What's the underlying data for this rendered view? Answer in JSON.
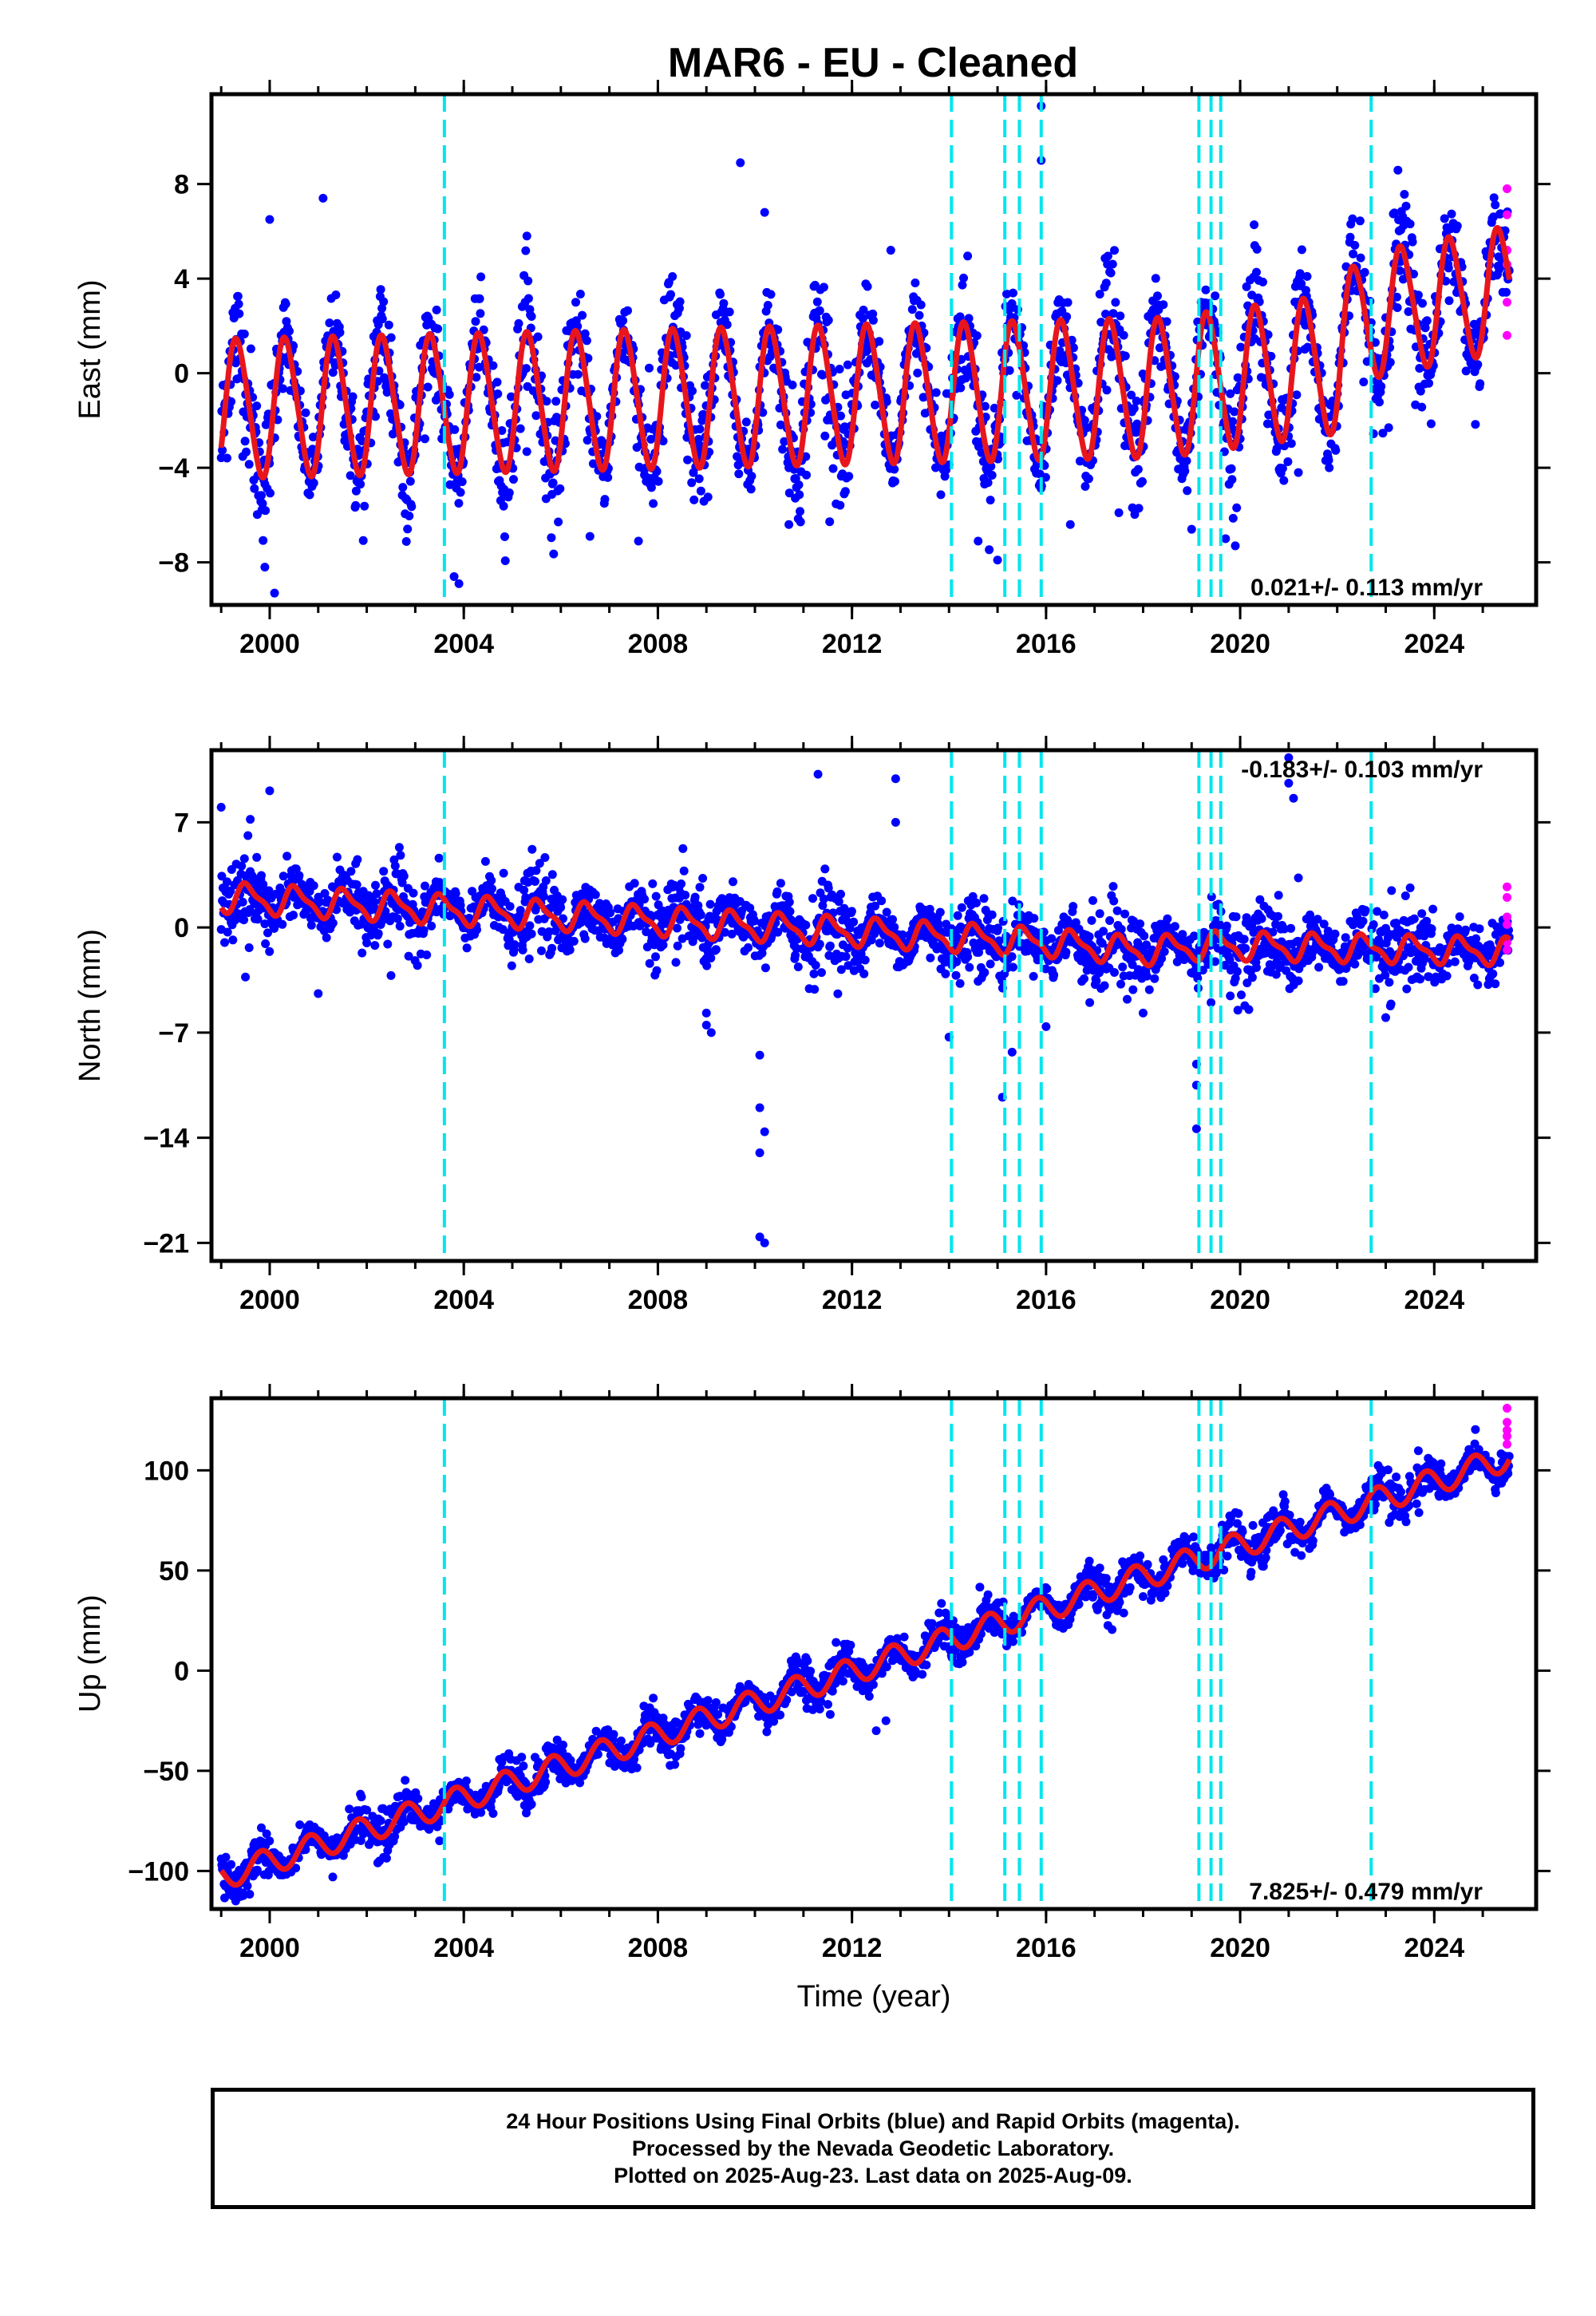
{
  "title": "MAR6  - EU - Cleaned",
  "caption_lines": [
    "24 Hour Positions Using Final Orbits (blue) and Rapid Orbits (magenta).",
    "Processed by the Nevada Geodetic Laboratory.",
    "Plotted on 2025-Aug-23. Last data on 2025-Aug-09."
  ],
  "colors": {
    "final_orbits": "#0000ff",
    "rapid_orbits": "#ff00ff",
    "model_fit": "#e8161c",
    "equipment_change": "#00e5ee"
  },
  "chart_data": [
    {
      "type": "scatter",
      "component": "east",
      "ylabel": "East (mm)",
      "xlabel": "",
      "xlim": [
        1998.8,
        2026.1
      ],
      "ylim": [
        -9.8,
        11.8
      ],
      "yticks": [
        -8,
        -4,
        0,
        4,
        8
      ],
      "xticks": [
        2000,
        2004,
        2008,
        2012,
        2016,
        2020,
        2024
      ],
      "rate_label": "0.021+/- 0.113 mm/yr",
      "rate_position": "bottom-right",
      "model": {
        "intercept": -0.6,
        "trend": [
          [
            1999.0,
            -0.9
          ],
          [
            2018.5,
            0.0
          ],
          [
            2022.0,
            1.0
          ],
          [
            2022.5,
            3.0
          ],
          [
            2025.6,
            4.2
          ]
        ],
        "amplitude": [
          [
            1999.0,
            2.9
          ],
          [
            2019.0,
            2.9
          ],
          [
            2022.0,
            2.9
          ],
          [
            2023.0,
            2.6
          ],
          [
            2025.6,
            2.6
          ]
        ],
        "phase_year": 0.08,
        "semiannual": 0.3
      },
      "scatter_spread": 1.5,
      "outliers": [
        [
          2009.7,
          8.9
        ],
        [
          2010.2,
          6.8
        ],
        [
          2012.8,
          5.2
        ],
        [
          2015.9,
          11.3
        ],
        [
          2015.9,
          9.0
        ],
        [
          2001.1,
          7.4
        ],
        [
          2000.0,
          6.5
        ],
        [
          2000.1,
          -9.3
        ],
        [
          1999.9,
          -8.2
        ],
        [
          2003.8,
          -8.6
        ],
        [
          2003.9,
          -8.9
        ],
        [
          2005.3,
          5.8
        ],
        [
          2006.6,
          -6.9
        ],
        [
          2007.6,
          -7.1
        ],
        [
          2010.7,
          -6.4
        ],
        [
          2014.6,
          -7.1
        ],
        [
          2015.0,
          -7.9
        ],
        [
          2016.5,
          -6.4
        ],
        [
          2017.5,
          -5.9
        ],
        [
          2019.0,
          -6.6
        ],
        [
          2019.7,
          -7.0
        ],
        [
          2019.9,
          -7.3
        ],
        [
          2020.3,
          5.4
        ],
        [
          2021.2,
          -4.2
        ]
      ],
      "rapid": [
        [
          2025.5,
          7.8
        ],
        [
          2025.5,
          6.7
        ],
        [
          2025.5,
          4.6
        ],
        [
          2025.5,
          3.0
        ],
        [
          2025.5,
          1.6
        ],
        [
          2025.5,
          5.2
        ]
      ]
    },
    {
      "type": "scatter",
      "component": "north",
      "ylabel": "North (mm)",
      "xlabel": "",
      "xlim": [
        1998.8,
        2026.1
      ],
      "ylim": [
        -22.2,
        11.8
      ],
      "yticks": [
        -21,
        -14,
        -7,
        0,
        7
      ],
      "xticks": [
        2000,
        2004,
        2008,
        2012,
        2016,
        2020,
        2024
      ],
      "rate_label": "-0.183+/- 0.103 mm/yr",
      "rate_position": "top-right",
      "model": {
        "intercept": 0.0,
        "trend": [
          [
            1999.0,
            2.0
          ],
          [
            2016.0,
            -1.0
          ],
          [
            2018.0,
            -1.6
          ],
          [
            2019.3,
            -1.2
          ],
          [
            2025.6,
            -1.6
          ]
        ],
        "amplitude": [
          [
            1999.0,
            0.9
          ],
          [
            2025.6,
            0.8
          ]
        ],
        "phase_year": 0.3,
        "semiannual": 0.3
      },
      "scatter_spread": 1.4,
      "outliers": [
        [
          2009.0,
          -6.5
        ],
        [
          2009.1,
          -7.0
        ],
        [
          2010.1,
          -8.5
        ],
        [
          2010.1,
          -12.0
        ],
        [
          2010.2,
          -13.6
        ],
        [
          2010.1,
          -15.0
        ],
        [
          2010.1,
          -20.6
        ],
        [
          2010.2,
          -21.0
        ],
        [
          2012.9,
          9.9
        ],
        [
          2012.9,
          7.0
        ],
        [
          2011.3,
          10.2
        ],
        [
          2014.0,
          -7.3
        ],
        [
          2015.1,
          -11.3
        ],
        [
          2015.3,
          -8.3
        ],
        [
          2019.1,
          -9.1
        ],
        [
          2019.1,
          -10.5
        ],
        [
          2019.1,
          -13.4
        ],
        [
          2021.0,
          11.3
        ],
        [
          2021.0,
          9.6
        ],
        [
          2021.1,
          8.6
        ],
        [
          1999.0,
          8.0
        ],
        [
          1999.6,
          7.2
        ],
        [
          2000.0,
          9.1
        ],
        [
          1999.5,
          -3.3
        ],
        [
          2001.0,
          -4.4
        ],
        [
          2002.5,
          -3.2
        ],
        [
          2009.0,
          -5.7
        ],
        [
          2016.0,
          -6.6
        ],
        [
          2018.0,
          -5.7
        ],
        [
          2019.4,
          -5.0
        ],
        [
          2021.2,
          3.3
        ],
        [
          2023.0,
          -6.0
        ],
        [
          2016.9,
          -5.0
        ]
      ],
      "rapid": [
        [
          2025.5,
          2.7
        ],
        [
          2025.5,
          2.0
        ],
        [
          2025.5,
          0.7
        ],
        [
          2025.5,
          0.2
        ],
        [
          2025.5,
          -1.0
        ],
        [
          2025.5,
          -1.5
        ]
      ]
    },
    {
      "type": "scatter",
      "component": "up",
      "ylabel": "Up (mm)",
      "xlabel": "Time (year)",
      "xlim": [
        1998.8,
        2026.1
      ],
      "ylim": [
        -119,
        136
      ],
      "yticks": [
        -100,
        -50,
        0,
        50,
        100
      ],
      "xticks": [
        2000,
        2004,
        2008,
        2012,
        2016,
        2020,
        2024
      ],
      "rate_label": "7.825+/- 0.479 mm/yr",
      "rate_position": "bottom-right",
      "model": {
        "intercept": 0.0,
        "trend": [
          [
            1999.0,
            -103.0
          ],
          [
            2025.6,
            107.0
          ]
        ],
        "amplitude": [
          [
            1999.0,
            6.5
          ],
          [
            2025.6,
            6.5
          ]
        ],
        "phase_year": 0.58,
        "semiannual": 0.0
      },
      "scatter_spread": 6.0,
      "outliers": [
        [
          2012.5,
          -30.0
        ],
        [
          2012.7,
          -25.0
        ],
        [
          2015.2,
          15.0
        ],
        [
          2003.5,
          -85.0
        ],
        [
          2018.0,
          37.0
        ],
        [
          1999.3,
          -115.0
        ],
        [
          2001.3,
          -103.0
        ]
      ],
      "rapid": [
        [
          2025.5,
          131.0
        ],
        [
          2025.5,
          124.0
        ],
        [
          2025.5,
          120.0
        ],
        [
          2025.5,
          117.0
        ],
        [
          2025.5,
          113.0
        ]
      ]
    }
  ],
  "equipment_changes": [
    2003.6,
    2014.05,
    2015.15,
    2015.45,
    2015.9,
    2019.15,
    2019.4,
    2019.6,
    2022.7
  ]
}
